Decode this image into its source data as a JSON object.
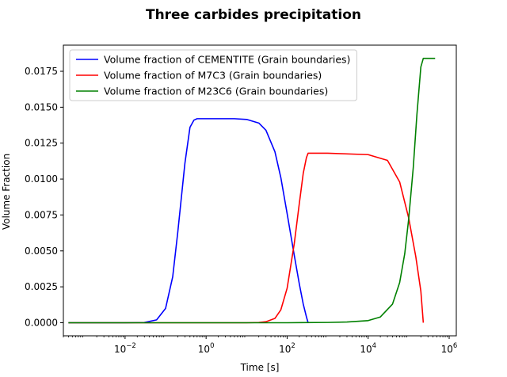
{
  "chart_data": {
    "type": "line",
    "title": "Three carbides precipitation",
    "xlabel": "Time [s]",
    "ylabel": "Volume Fraction",
    "x_scale": "log",
    "xlim": [
      0.0003,
      1500000
    ],
    "ylim": [
      -0.00091,
      0.01932
    ],
    "x_ticks": [
      0.01,
      1,
      100,
      10000,
      1000000
    ],
    "x_tick_labels": [
      {
        "base": "10",
        "exp": "−2"
      },
      {
        "base": "10",
        "exp": "0"
      },
      {
        "base": "10",
        "exp": "2"
      },
      {
        "base": "10",
        "exp": "4"
      },
      {
        "base": "10",
        "exp": "6"
      }
    ],
    "y_ticks": [
      0.0,
      0.0025,
      0.005,
      0.0075,
      0.01,
      0.0125,
      0.015,
      0.0175
    ],
    "y_tick_labels": [
      "0.0000",
      "0.0025",
      "0.0050",
      "0.0075",
      "0.0100",
      "0.0125",
      "0.0150",
      "0.0175"
    ],
    "grid": false,
    "legend_position": "top-left",
    "series": [
      {
        "name": "Volume fraction of CEMENTITE (Grain boundaries)",
        "color": "#0000ff",
        "x": [
          0.0004,
          0.01,
          0.03,
          0.06,
          0.1,
          0.15,
          0.2,
          0.3,
          0.4,
          0.5,
          0.6,
          1,
          5,
          10,
          20,
          30,
          50,
          70,
          100,
          150,
          200,
          250,
          300,
          330
        ],
        "y": [
          0.0,
          0.0,
          2e-05,
          0.0002,
          0.001,
          0.0032,
          0.0063,
          0.0111,
          0.0136,
          0.0141,
          0.0142,
          0.0142,
          0.0142,
          0.01415,
          0.0139,
          0.0134,
          0.0119,
          0.0101,
          0.0076,
          0.0047,
          0.0027,
          0.0013,
          0.0004,
          0.0
        ]
      },
      {
        "name": "Volume fraction of M7C3 (Grain boundaries)",
        "color": "#ff0000",
        "x": [
          0.0004,
          10,
          20,
          30,
          50,
          70,
          100,
          150,
          200,
          250,
          300,
          330,
          400,
          1000,
          10000,
          30000,
          60000,
          100000,
          150000,
          200000,
          230000
        ],
        "y": [
          0.0,
          0.0,
          2e-05,
          7e-05,
          0.0003,
          0.0009,
          0.0024,
          0.0055,
          0.0083,
          0.0104,
          0.0115,
          0.0118,
          0.0118,
          0.0118,
          0.0117,
          0.0113,
          0.0098,
          0.0073,
          0.0046,
          0.0022,
          0.0
        ]
      },
      {
        "name": "Volume fraction of M23C6 (Grain boundaries)",
        "color": "#008000",
        "x": [
          0.0004,
          100,
          1000,
          3000,
          10000,
          20000,
          40000,
          60000,
          80000,
          100000,
          130000,
          160000,
          200000,
          230000,
          300000,
          450000
        ],
        "y": [
          0.0,
          0.0,
          2e-05,
          5e-05,
          0.00015,
          0.0004,
          0.0013,
          0.0028,
          0.0048,
          0.0072,
          0.0108,
          0.0145,
          0.0178,
          0.0184,
          0.0184,
          0.0184
        ]
      }
    ]
  }
}
